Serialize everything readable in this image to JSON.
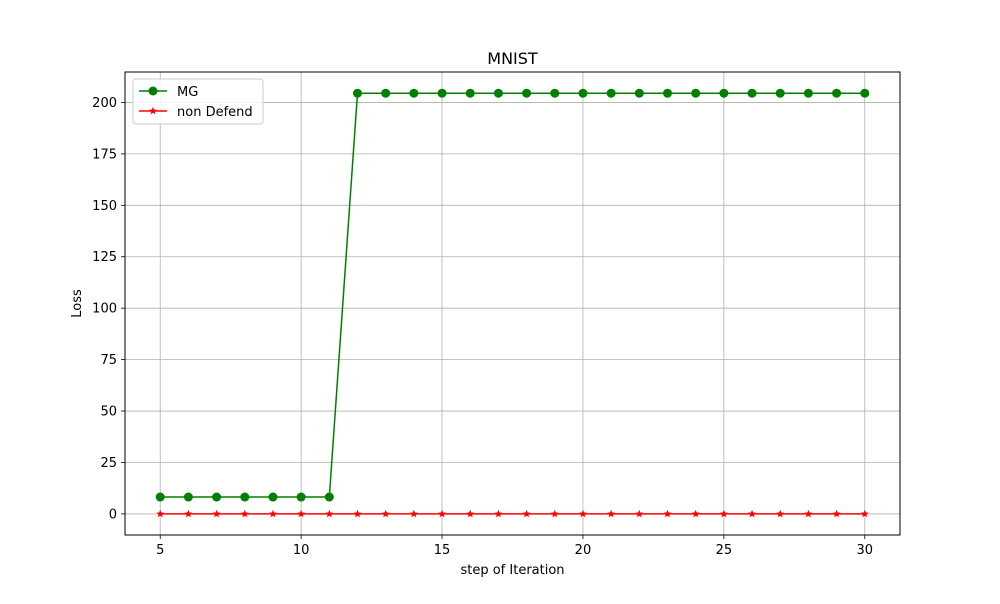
{
  "chart_data": {
    "type": "line",
    "title": "MNIST",
    "xlabel": "step of Iteration",
    "ylabel": "Loss",
    "xlim": [
      3.75,
      31.25
    ],
    "ylim": [
      -10.25,
      214.8
    ],
    "x_ticks": [
      5,
      10,
      15,
      20,
      25,
      30
    ],
    "y_ticks": [
      0,
      25,
      50,
      75,
      100,
      125,
      150,
      175,
      200
    ],
    "grid": true,
    "legend_position": "upper-left",
    "x": [
      5,
      6,
      7,
      8,
      9,
      10,
      11,
      12,
      13,
      14,
      15,
      16,
      17,
      18,
      19,
      20,
      21,
      22,
      23,
      24,
      25,
      26,
      27,
      28,
      29,
      30
    ],
    "series": [
      {
        "name": "MG",
        "color": "#008000",
        "marker": "circle",
        "values": [
          8.2,
          8.2,
          8.2,
          8.2,
          8.2,
          8.2,
          8.2,
          204.5,
          204.5,
          204.5,
          204.5,
          204.5,
          204.5,
          204.5,
          204.5,
          204.5,
          204.5,
          204.5,
          204.5,
          204.5,
          204.5,
          204.5,
          204.5,
          204.5,
          204.5,
          204.5
        ]
      },
      {
        "name": "non Defend",
        "color": "#ff0000",
        "marker": "star",
        "values": [
          0,
          0,
          0,
          0,
          0,
          0,
          0,
          0,
          0,
          0,
          0,
          0,
          0,
          0,
          0,
          0,
          0,
          0,
          0,
          0,
          0,
          0,
          0,
          0,
          0,
          0
        ]
      }
    ]
  }
}
